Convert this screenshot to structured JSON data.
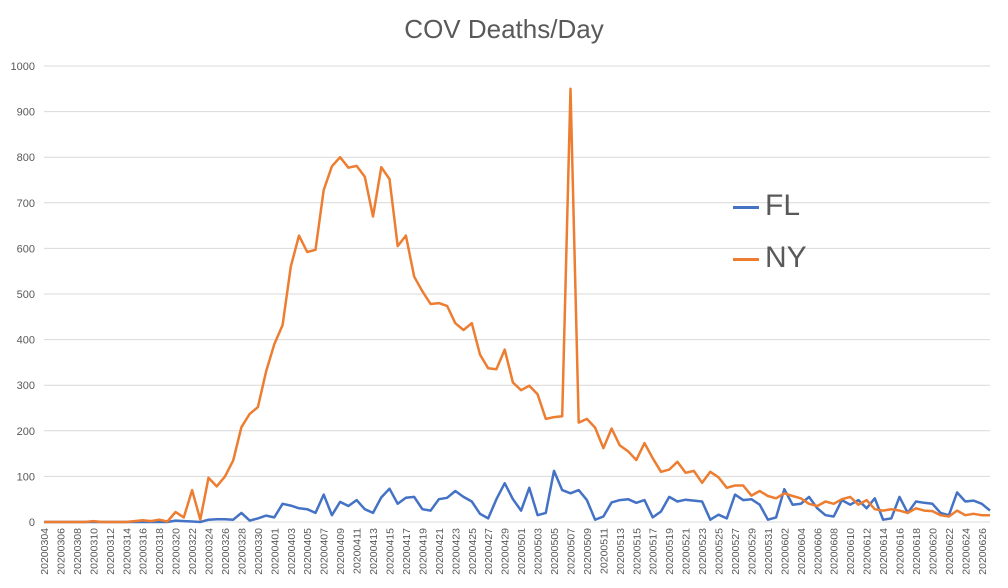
{
  "chart_data": {
    "type": "line",
    "title": "COV Deaths/Day",
    "xlabel": "",
    "ylabel": "",
    "ylim": [
      0,
      1000
    ],
    "yticks": [
      0,
      100,
      200,
      300,
      400,
      500,
      600,
      700,
      800,
      900,
      1000
    ],
    "grid": true,
    "legend_position": "right",
    "x": [
      "20200304",
      "20200305",
      "20200306",
      "20200307",
      "20200308",
      "20200309",
      "20200310",
      "20200311",
      "20200312",
      "20200313",
      "20200314",
      "20200315",
      "20200316",
      "20200317",
      "20200318",
      "20200319",
      "20200320",
      "20200321",
      "20200322",
      "20200323",
      "20200324",
      "20200325",
      "20200326",
      "20200327",
      "20200328",
      "20200329",
      "20200330",
      "20200331",
      "20200401",
      "20200402",
      "20200403",
      "20200404",
      "20200405",
      "20200406",
      "20200407",
      "20200408",
      "20200409",
      "20200410",
      "20200411",
      "20200412",
      "20200413",
      "20200414",
      "20200415",
      "20200416",
      "20200417",
      "20200418",
      "20200419",
      "20200420",
      "20200421",
      "20200422",
      "20200423",
      "20200424",
      "20200425",
      "20200426",
      "20200427",
      "20200428",
      "20200429",
      "20200430",
      "20200501",
      "20200502",
      "20200503",
      "20200504",
      "20200505",
      "20200506",
      "20200507",
      "20200508",
      "20200509",
      "20200510",
      "20200511",
      "20200512",
      "20200513",
      "20200514",
      "20200515",
      "20200516",
      "20200517",
      "20200518",
      "20200519",
      "20200520",
      "20200521",
      "20200522",
      "20200523",
      "20200524",
      "20200525",
      "20200526",
      "20200527",
      "20200528",
      "20200529",
      "20200530",
      "20200531",
      "20200601",
      "20200602",
      "20200603",
      "20200604",
      "20200605",
      "20200606",
      "20200607",
      "20200608",
      "20200609",
      "20200610",
      "20200611",
      "20200612",
      "20200613",
      "20200614",
      "20200615",
      "20200616",
      "20200617",
      "20200618",
      "20200619",
      "20200620",
      "20200621",
      "20200622",
      "20200623",
      "20200624",
      "20200625",
      "20200626",
      "20200627"
    ],
    "xtick_labels": [
      "20200304",
      "20200306",
      "20200308",
      "20200310",
      "20200312",
      "20200314",
      "20200316",
      "20200318",
      "20200320",
      "20200322",
      "20200324",
      "20200326",
      "20200328",
      "20200330",
      "20200401",
      "20200403",
      "20200405",
      "20200407",
      "20200409",
      "20200411",
      "20200413",
      "20200415",
      "20200417",
      "20200419",
      "20200421",
      "20200423",
      "20200425",
      "20200427",
      "20200429",
      "20200501",
      "20200503",
      "20200505",
      "20200507",
      "20200509",
      "20200511",
      "20200513",
      "20200515",
      "20200517",
      "20200519",
      "20200521",
      "20200523",
      "20200525",
      "20200527",
      "20200529",
      "20200531",
      "20200602",
      "20200604",
      "20200606",
      "20200608",
      "20200610",
      "20200612",
      "20200614",
      "20200616",
      "20200618",
      "20200620",
      "20200622",
      "20200624",
      "20200626"
    ],
    "series": [
      {
        "name": "FL",
        "color": "#4472C4",
        "values": [
          0,
          0,
          0,
          0,
          0,
          0,
          0,
          0,
          0,
          0,
          0,
          0,
          0,
          0,
          0,
          0,
          3,
          2,
          1,
          0,
          5,
          6,
          6,
          5,
          20,
          3,
          8,
          14,
          10,
          40,
          36,
          30,
          28,
          20,
          60,
          15,
          44,
          35,
          48,
          28,
          20,
          54,
          73,
          40,
          53,
          55,
          28,
          25,
          50,
          53,
          68,
          55,
          45,
          18,
          8,
          50,
          85,
          50,
          25,
          75,
          15,
          20,
          112,
          70,
          63,
          70,
          48,
          5,
          12,
          43,
          48,
          50,
          42,
          48,
          10,
          23,
          55,
          45,
          49,
          47,
          45,
          5,
          16,
          8,
          60,
          48,
          50,
          38,
          5,
          10,
          72,
          38,
          40,
          55,
          30,
          15,
          12,
          48,
          38,
          48,
          30,
          52,
          5,
          8,
          55,
          20,
          45,
          42,
          40,
          20,
          15,
          65,
          45,
          47,
          40,
          25
        ]
      },
      {
        "name": "NY",
        "color": "#ED7D31",
        "values": [
          0,
          0,
          0,
          0,
          0,
          0,
          2,
          0,
          0,
          0,
          0,
          2,
          4,
          2,
          5,
          1,
          22,
          10,
          70,
          5,
          97,
          78,
          100,
          135,
          208,
          237,
          252,
          330,
          390,
          432,
          560,
          628,
          592,
          597,
          728,
          780,
          800,
          777,
          781,
          757,
          670,
          778,
          752,
          605,
          628,
          538,
          506,
          478,
          480,
          474,
          436,
          421,
          436,
          367,
          337,
          335,
          378,
          306,
          289,
          299,
          280,
          226,
          230,
          232,
          950,
          218,
          226,
          207,
          162,
          205,
          168,
          155,
          136,
          173,
          140,
          110,
          115,
          132,
          108,
          112,
          86,
          110,
          98,
          75,
          80,
          80,
          58,
          68,
          57,
          52,
          63,
          57,
          52,
          40,
          35,
          45,
          40,
          50,
          55,
          38,
          48,
          28,
          25,
          28,
          25,
          20,
          30,
          25,
          24,
          15,
          12,
          25,
          15,
          18,
          15,
          15
        ]
      }
    ]
  }
}
